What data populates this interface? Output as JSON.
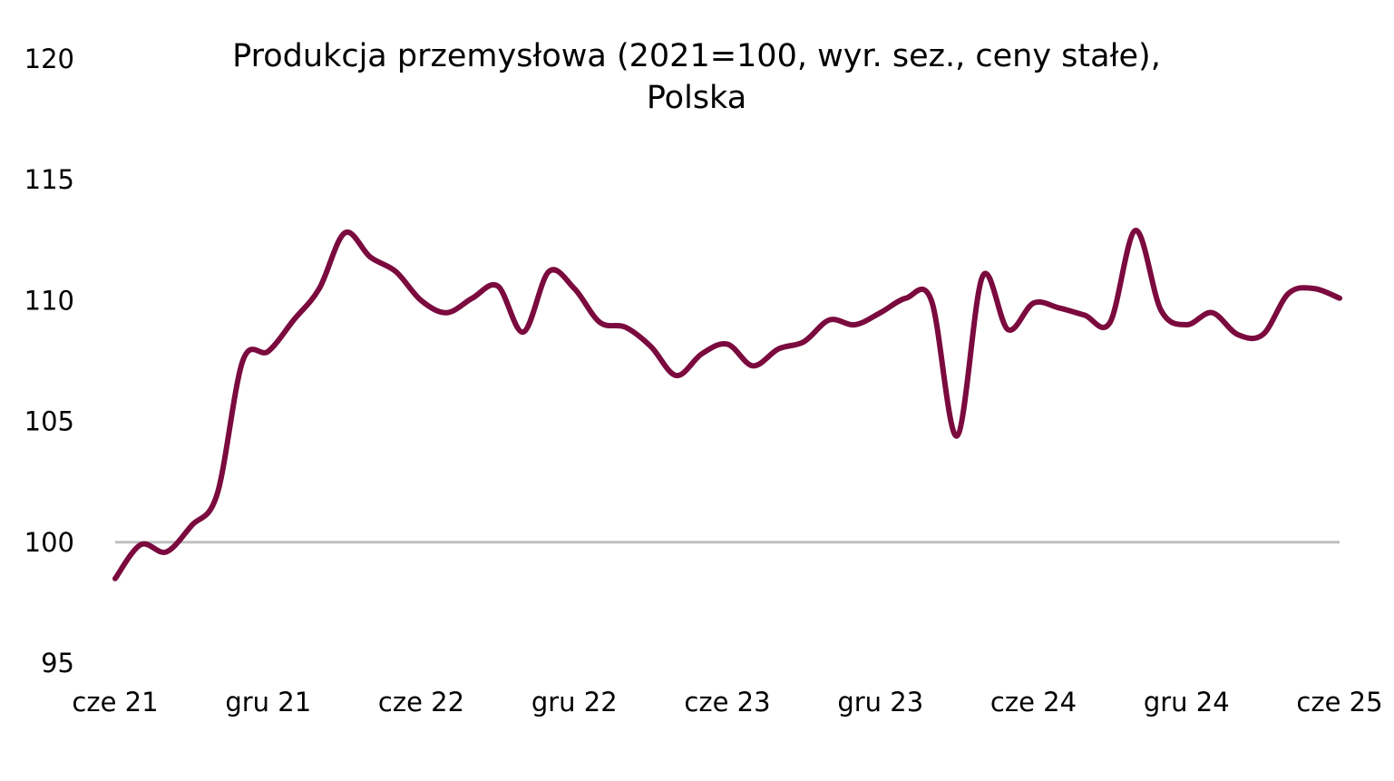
{
  "chart_data": {
    "type": "line",
    "title_lines": [
      "Produkcja przemysłowa (2021=100, wyr. sez., ceny stałe),",
      "Polska"
    ],
    "xlabel": "",
    "ylabel": "",
    "ylim": [
      95,
      120
    ],
    "y_ticks": [
      "95",
      "100",
      "105",
      "110",
      "115",
      "120"
    ],
    "x_tick_labels": [
      "cze 21",
      "gru 21",
      "cze 22",
      "gru 22",
      "cze 23",
      "gru 23",
      "cze 24",
      "gru 24",
      "cze 25"
    ],
    "reference_line": 100,
    "line_color": "#7b0a3e",
    "reference_color": "#bfbfbf",
    "grid": false,
    "legend": "none",
    "x": [
      "2021-06",
      "2021-07",
      "2021-08",
      "2021-09",
      "2021-10",
      "2021-11",
      "2021-12",
      "2022-01",
      "2022-02",
      "2022-03",
      "2022-04",
      "2022-05",
      "2022-06",
      "2022-07",
      "2022-08",
      "2022-09",
      "2022-10",
      "2022-11",
      "2022-12",
      "2023-01",
      "2023-02",
      "2023-03",
      "2023-04",
      "2023-05",
      "2023-06",
      "2023-07",
      "2023-08",
      "2023-09",
      "2023-10",
      "2023-11",
      "2023-12",
      "2024-01",
      "2024-02",
      "2024-03",
      "2024-04",
      "2024-05",
      "2024-06",
      "2024-07",
      "2024-08",
      "2024-09",
      "2024-10",
      "2024-11",
      "2024-12",
      "2025-01",
      "2025-02",
      "2025-03",
      "2025-04",
      "2025-05",
      "2025-06"
    ],
    "values": [
      98.5,
      99.9,
      99.6,
      100.7,
      102.0,
      107.5,
      107.9,
      109.2,
      110.5,
      112.8,
      111.8,
      111.2,
      110.0,
      109.5,
      110.1,
      110.6,
      108.7,
      111.2,
      110.5,
      109.1,
      108.9,
      108.1,
      106.9,
      107.8,
      108.2,
      107.3,
      108.0,
      108.3,
      109.2,
      109.0,
      109.5,
      110.1,
      110.0,
      104.4,
      111.0,
      108.8,
      109.9,
      109.7,
      109.4,
      109.1,
      112.9,
      109.6,
      109.0,
      109.5,
      108.6,
      108.6,
      110.3,
      110.5,
      110.1
    ]
  }
}
